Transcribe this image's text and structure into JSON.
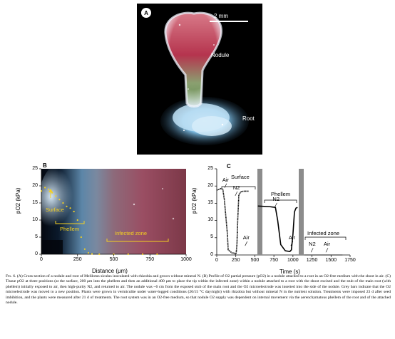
{
  "panel_a": {
    "label": "A",
    "scale_bar": "2 mm",
    "labels": {
      "nodule": "Nodule",
      "root": "Root"
    }
  },
  "panel_b": {
    "label": "B",
    "ylabel": "pO2 (kPa)",
    "xlabel": "Distance (μm)",
    "y_ticks": [
      "0",
      "5",
      "10",
      "15",
      "20",
      "25"
    ],
    "x_ticks": [
      "0",
      "250",
      "500",
      "750",
      "1000"
    ],
    "annotations": {
      "surface": "Surface",
      "phellem": "Phellem",
      "infected": "Infected zone"
    },
    "highlight_color": "#f5d020"
  },
  "panel_c": {
    "label": "C",
    "ylabel": "pO2 (kPa)",
    "xlabel": "Time (s)",
    "y_ticks": [
      "0",
      "5",
      "10",
      "15",
      "20",
      "25"
    ],
    "x_ticks": [
      "0",
      "250",
      "500",
      "750",
      "1000",
      "1250",
      "1500",
      "1750"
    ],
    "section_labels": {
      "surface": "Surface",
      "phellem": "Phellem",
      "infected": "Infected zone"
    },
    "gas_labels": {
      "air": "Air",
      "n2": "N2"
    }
  },
  "chart_data": [
    {
      "type": "scatter",
      "panel": "B",
      "xlabel": "Distance (μm)",
      "ylabel": "pO2 (kPa)",
      "xlim": [
        0,
        1000
      ],
      "ylim": [
        0,
        25
      ],
      "grid": false,
      "series": [
        {
          "x": [
            0,
            25,
            50,
            75,
            100,
            125,
            150,
            175,
            200,
            225,
            250,
            275,
            300,
            325,
            350,
            400,
            500,
            600,
            700,
            800
          ],
          "y": [
            18.5,
            19.5,
            19.0,
            18.0,
            17.0,
            16.0,
            15.0,
            14.0,
            13.5,
            12.5,
            10.0,
            5.0,
            1.5,
            0.4,
            0.1,
            0,
            0,
            0,
            0,
            0
          ]
        }
      ]
    },
    {
      "type": "line",
      "panel": "C",
      "xlabel": "Time (s)",
      "ylabel": "pO2 (kPa)",
      "xlim": [
        0,
        1750
      ],
      "ylim": [
        0,
        25
      ],
      "grid": false,
      "series": [
        {
          "x": [
            0,
            60,
            80,
            100,
            140,
            150,
            200,
            240,
            245,
            255,
            265,
            275,
            290,
            320,
            360,
            420
          ],
          "y": [
            18.8,
            19.3,
            19.0,
            16.0,
            6.0,
            1.5,
            0.6,
            0.5,
            0.3,
            0.5,
            3.0,
            10.0,
            17.5,
            18.4,
            18.5,
            18.5
          ]
        },
        {
          "x": [
            540,
            700,
            770,
            800,
            840,
            900,
            960,
            980,
            1000,
            1020,
            1040,
            1060
          ],
          "y": [
            14.2,
            14.0,
            13.8,
            10.0,
            3.0,
            1.2,
            1.0,
            1.5,
            6.0,
            12.5,
            13.6,
            13.8
          ]
        },
        {
          "x": [
            1150,
            1250,
            1350,
            1450,
            1550,
            1650
          ],
          "y": [
            0,
            0,
            0,
            0,
            0,
            0
          ]
        }
      ],
      "annotations": [
        {
          "text": "Air",
          "x": 130,
          "y": 20.3
        },
        {
          "text": "N2",
          "x": 270,
          "y": 18.0
        },
        {
          "text": "Air",
          "x": 400,
          "y": 3.5
        },
        {
          "text": "N2",
          "x": 790,
          "y": 14.7
        },
        {
          "text": "Air",
          "x": 1000,
          "y": 3.5
        },
        {
          "text": "N2",
          "x": 1265,
          "y": 1.6
        },
        {
          "text": "Air",
          "x": 1460,
          "y": 1.6
        }
      ]
    }
  ],
  "caption": {
    "fig": "Fig. 6.",
    "text": "(A) Cross-section of a nodule and root of Melilotus siculus inoculated with rhizobia and grown without mineral N. (B) Profile of O2 partial pressure (pO2) in a nodule attached to a root in an O2-free medium with the shoot in air. (C) Tissue pO2 at three positions (at the surface, 200 μm into the phellem and then an additional 400 μm to place the tip within the infected zone) within a nodule attached to a root with the shoot excised and the stub of the main root (with phellem) initially exposed to air, then high-purity N2, and returned to air. The nodule was ~6 cm from the exposed stub of the main root and the O2 microelectrode was inserted into the side of the nodule. Grey bars indicate that the O2 microelectrode was moved to a new position. Plants were grown in vermiculite under water-logged conditions (20/15 °C day/night) with rhizobia but without mineral N in the nutrient solution. Treatments were imposed 23 d after seed imbibition, and the plants were measured after 21 d of treatments. The root system was in an O2-free medium, so that nodule O2 supply was dependent on internal movement via the aerenchymatous phellem of the root and of the attached nodule."
  }
}
